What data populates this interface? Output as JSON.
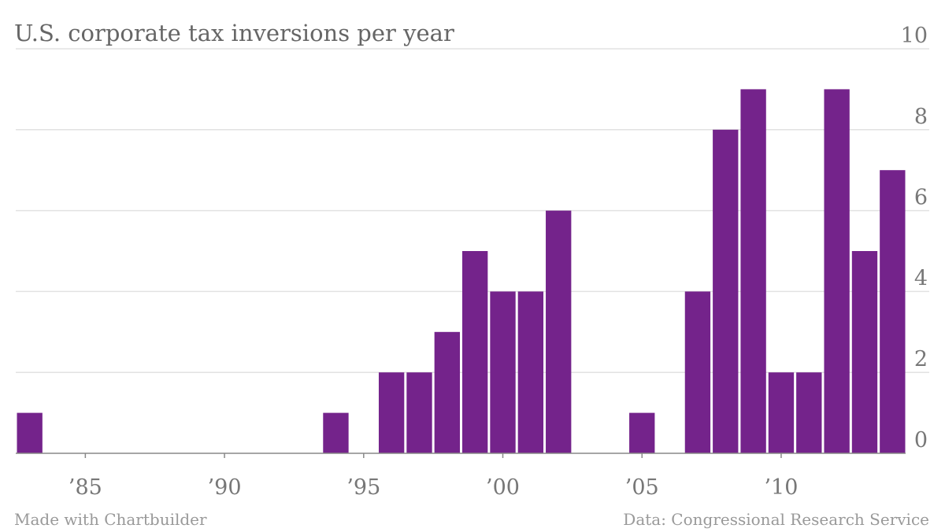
{
  "chart_data": {
    "type": "bar",
    "title": "U.S. corporate tax inversions per year",
    "xlabel": "",
    "ylabel": "",
    "x": [
      1983,
      1994,
      1996,
      1997,
      1998,
      1999,
      2000,
      2001,
      2002,
      2005,
      2007,
      2008,
      2009,
      2010,
      2011,
      2012,
      2013,
      2014
    ],
    "values": [
      1,
      1,
      2,
      2,
      3,
      5,
      4,
      4,
      6,
      1,
      4,
      8,
      9,
      2,
      2,
      9,
      5,
      7
    ],
    "xlim": [
      1982.5,
      2014.5
    ],
    "ylim": [
      0,
      10
    ],
    "yticks": [
      0,
      2,
      4,
      6,
      8,
      10
    ],
    "ytick_labels": [
      "0",
      "2",
      "4",
      "6",
      "8",
      "10"
    ],
    "xticks": [
      1985,
      1990,
      1995,
      2000,
      2005,
      2010
    ],
    "xtick_labels": [
      "’85",
      "’90",
      "’95",
      "’00",
      "’05",
      "’10"
    ],
    "y_axis_position": "right",
    "grid": true,
    "legend": "none",
    "bar_color": "#74238b"
  },
  "footer": {
    "left": "Made with Chartbuilder",
    "right": "Data: Congressional Research Service"
  }
}
